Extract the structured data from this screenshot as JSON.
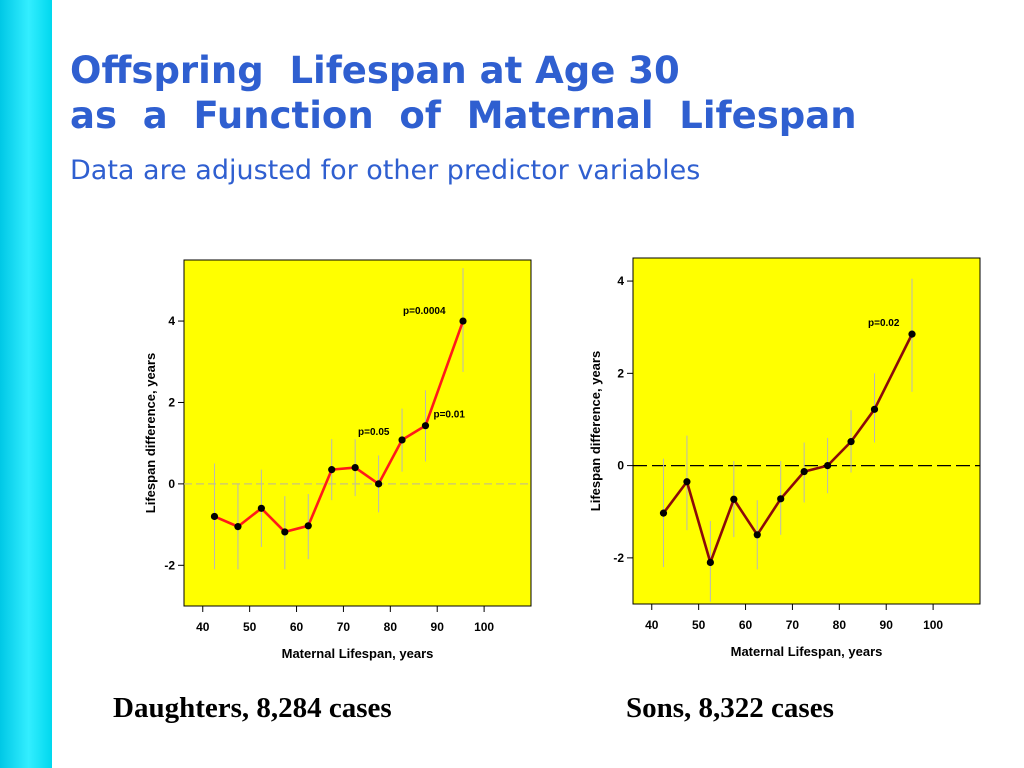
{
  "slide": {
    "title_line1": "Offspring  Lifespan at Age 30",
    "title_line2": "as  a  Function  of  Maternal  Lifespan",
    "subtitle": "Data are adjusted for other predictor variables",
    "accent_color": "#2f5fd0",
    "stripe_color": "#1ee6fa"
  },
  "captions": {
    "left": "Daughters, 8,284 cases",
    "right": "Sons, 8,322 cases"
  },
  "chart_data": [
    {
      "type": "line",
      "xlabel": "Maternal Lifespan, years",
      "ylabel": "Lifespan difference, years",
      "xlim": [
        36,
        110
      ],
      "ylim": [
        -3,
        5.5
      ],
      "x_ticks": [
        40,
        50,
        60,
        70,
        80,
        90,
        100
      ],
      "y_ticks": [
        -2,
        0,
        2,
        4
      ],
      "reference_line": 0,
      "reference_line_color": "#c8c37a",
      "background_color": "#ffff00",
      "line_color": "#ff1a1a",
      "x": [
        42.5,
        47.5,
        52.5,
        57.5,
        62.5,
        67.5,
        72.5,
        77.5,
        82.5,
        87.5,
        95.5
      ],
      "values": [
        -0.8,
        -1.05,
        -0.6,
        -1.18,
        -1.03,
        0.35,
        0.4,
        0.0,
        1.08,
        1.43,
        4.0
      ],
      "err_low": [
        -2.1,
        -2.1,
        -1.55,
        -2.1,
        -1.85,
        -0.4,
        -0.3,
        -0.7,
        0.3,
        0.55,
        2.75
      ],
      "err_high": [
        0.5,
        0.0,
        0.35,
        -0.3,
        -0.25,
        1.1,
        1.1,
        0.7,
        1.85,
        2.3,
        5.3
      ],
      "annotations": [
        {
          "text": "p=0.0004",
          "x": 95.5,
          "y": 4.0
        },
        {
          "text": "p=0.05",
          "x": 82.5,
          "y": 1.08
        },
        {
          "text": "p=0.01",
          "x": 87.5,
          "y": 1.43
        }
      ]
    },
    {
      "type": "line",
      "xlabel": "Maternal Lifespan, years",
      "ylabel": "Lifespan difference, years",
      "xlim": [
        36,
        110
      ],
      "ylim": [
        -3,
        4.5
      ],
      "x_ticks": [
        40,
        50,
        60,
        70,
        80,
        90,
        100
      ],
      "y_ticks": [
        -2,
        0,
        2,
        4
      ],
      "reference_line": 0,
      "reference_line_color": "#000000",
      "background_color": "#ffff00",
      "line_color": "#8b0a0a",
      "x": [
        42.5,
        47.5,
        52.5,
        57.5,
        62.5,
        67.5,
        72.5,
        77.5,
        82.5,
        87.5,
        95.5
      ],
      "values": [
        -1.03,
        -0.35,
        -2.1,
        -0.73,
        -1.5,
        -0.72,
        -0.13,
        0.0,
        0.52,
        1.22,
        2.85
      ],
      "err_low": [
        -2.2,
        -1.4,
        -2.95,
        -1.55,
        -2.25,
        -1.5,
        -0.8,
        -0.6,
        -0.15,
        0.5,
        1.6
      ],
      "err_high": [
        0.15,
        0.65,
        -1.2,
        0.1,
        -0.75,
        0.1,
        0.5,
        0.6,
        1.2,
        2.0,
        4.05
      ],
      "annotations": [
        {
          "text": "p=0.02",
          "x": 95.5,
          "y": 2.85
        }
      ]
    }
  ]
}
